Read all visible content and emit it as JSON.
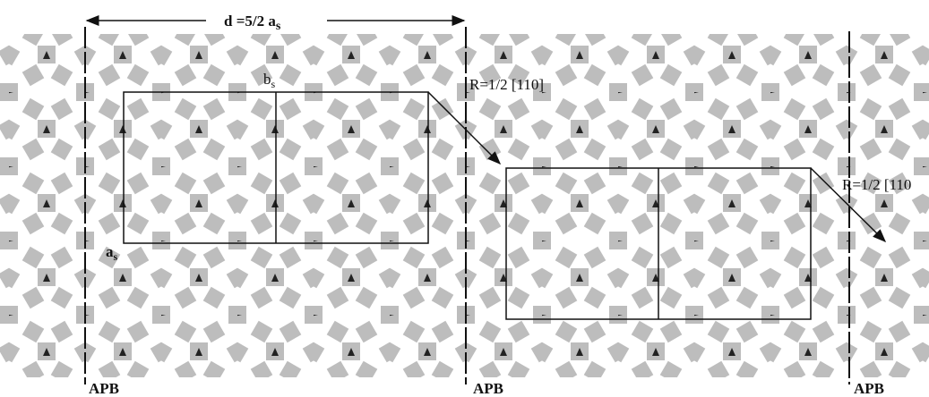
{
  "dimension": {
    "text": "d =5/2 a",
    "subscript": "s"
  },
  "basis": {
    "b": {
      "text": "b",
      "subscript": "s"
    },
    "a": {
      "text": "a",
      "subscript": "s"
    }
  },
  "shifts": [
    "R=1/2 [110]",
    "R=1/2 [110"
  ],
  "boundaries": [
    "APB",
    "APB",
    "APB"
  ]
}
